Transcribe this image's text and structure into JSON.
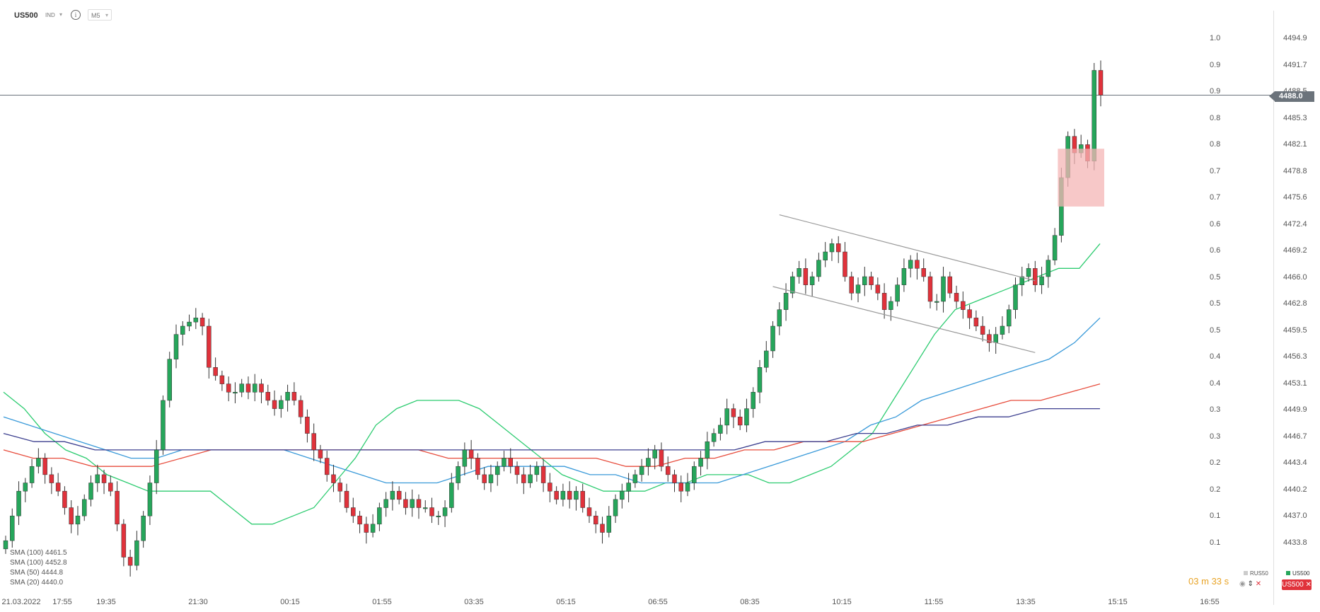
{
  "header": {
    "symbol": "US500",
    "indicator_label": "IND",
    "info_icon": "info-icon",
    "timeframe": "M5"
  },
  "price_axis": {
    "labels": [
      "4494.9",
      "4491.7",
      "4488.5",
      "4485.3",
      "4482.1",
      "4478.8",
      "4475.6",
      "4472.4",
      "4469.2",
      "4466.0",
      "4462.8",
      "4459.5",
      "4456.3",
      "4453.1",
      "4449.9",
      "4446.7",
      "4443.4",
      "4440.2",
      "4437.0",
      "4433.8"
    ],
    "current_price": "4488.0"
  },
  "ratio_axis": {
    "labels": [
      "1.0",
      "0.9",
      "0.9",
      "0.8",
      "0.8",
      "0.7",
      "0.7",
      "0.6",
      "0.6",
      "0.5",
      "0.5",
      "0.5",
      "0.4",
      "0.4",
      "0.3",
      "0.3",
      "0.2",
      "0.2",
      "0.1",
      "0.1"
    ]
  },
  "time_axis": {
    "labels": [
      "21.03.2022",
      "17:55",
      "19:35",
      "21:30",
      "00:15",
      "01:55",
      "03:35",
      "05:15",
      "06:55",
      "08:35",
      "10:15",
      "11:55",
      "13:35",
      "15:15",
      "16:55"
    ]
  },
  "legend": {
    "items": [
      "SMA (100)",
      "SMA (100)",
      "SMA (50)",
      "SMA (20)"
    ],
    "values": [
      "4461.5",
      "4452.8",
      "4444.8",
      "4440.0"
    ]
  },
  "countdown": {
    "minutes": "03",
    "m_label": "m",
    "seconds": "33",
    "s_label": "s"
  },
  "compare": {
    "rus50_label": "RUS50",
    "us500_label": "US500",
    "us500_button": "US500 ✕"
  },
  "colors": {
    "up": "#26a65b",
    "down": "#e0323b",
    "sma_green": "#2ecc71",
    "sma_blue": "#3a9ad9",
    "sma_red": "#e74c3c",
    "sma_navy": "#3c3f8f",
    "channel": "#999999",
    "highlight": "#f4b6b6"
  },
  "chart_data": {
    "type": "candlestick",
    "title": "",
    "symbol": "US500",
    "timeframe": "M5",
    "xlabel": "",
    "ylabel": "",
    "ylim": [
      4432.0,
      4496.5
    ],
    "x_ticks": [
      "21.03.2022",
      "17:55",
      "19:35",
      "21:30",
      "00:15",
      "01:55",
      "03:35",
      "05:15",
      "06:55",
      "08:35",
      "10:15",
      "11:55",
      "13:35",
      "15:15",
      "16:55"
    ],
    "last_price": 4488.0,
    "candles_close": [
      4434,
      4437,
      4440,
      4441,
      4443,
      4444,
      4442,
      4441,
      4440,
      4438,
      4436,
      4437,
      4439,
      4441,
      4442,
      4441,
      4440,
      4436,
      4432,
      4431,
      4434,
      4437,
      4441,
      4445,
      4451,
      4456,
      4459,
      4460,
      4460.5,
      4461,
      4460,
      4455,
      4454,
      4453,
      4452,
      4452,
      4453,
      4452,
      4453,
      4452,
      4451,
      4450,
      4451,
      4452,
      4451,
      4449,
      4447,
      4445,
      4444,
      4442,
      4441,
      4440,
      4438,
      4437,
      4436,
      4435,
      4436,
      4438,
      4439,
      4440,
      4439,
      4438,
      4439,
      4438,
      4438,
      4437,
      4437,
      4438,
      4441,
      4443,
      4445,
      4444,
      4442,
      4441,
      4442,
      4443,
      4444,
      4443,
      4442,
      4441,
      4442,
      4443,
      4441,
      4440,
      4439,
      4440,
      4439,
      4440,
      4438,
      4437,
      4436,
      4435,
      4437,
      4439,
      4440,
      4441,
      4442,
      4443,
      4444,
      4445,
      4443,
      4442,
      4441,
      4440,
      4441,
      4443,
      4444,
      4446,
      4447,
      4448,
      4450,
      4449,
      4448,
      4450,
      4452,
      4455,
      4457,
      4460,
      4462,
      4464,
      4466,
      4467,
      4465,
      4466,
      4468,
      4469,
      4470,
      4469,
      4466,
      4464,
      4465,
      4466,
      4465,
      4464,
      4462,
      4463,
      4465,
      4467,
      4468,
      4467,
      4466,
      4463,
      4463,
      4466,
      4464,
      4463,
      4462,
      4461,
      4460,
      4459,
      4458,
      4459,
      4460,
      4462,
      4465,
      4466,
      4467,
      4465,
      4466,
      4468,
      4471,
      4478,
      4483,
      4481,
      4482,
      4480,
      4491,
      4488
    ],
    "series": [
      {
        "name": "SMA (20)",
        "color": "#2ecc71",
        "values": [
          4452,
          4450,
          4447,
          4445,
          4444,
          4442,
          4441,
          4440,
          4440,
          4440,
          4440,
          4438,
          4436,
          4436,
          4437,
          4438,
          4441,
          4444,
          4448,
          4450,
          4451,
          4451,
          4451,
          4450,
          4448,
          4446,
          4444,
          4442,
          4441,
          4440,
          4440,
          4440,
          4441,
          4441,
          4442,
          4442,
          4442,
          4441,
          4441,
          4442,
          4443,
          4445,
          4447,
          4451,
          4455,
          4459,
          4462,
          4463,
          4464,
          4465,
          4466,
          4467,
          4467,
          4470
        ]
      },
      {
        "name": "SMA (50)",
        "color": "#3a9ad9",
        "values": [
          4449,
          4448,
          4447,
          4446,
          4445,
          4444,
          4444,
          4445,
          4445,
          4445,
          4445,
          4445,
          4444,
          4443,
          4442,
          4441,
          4441,
          4441,
          4442,
          4443,
          4443,
          4443,
          4443,
          4442,
          4442,
          4441,
          4441,
          4441,
          4441,
          4442,
          4443,
          4444,
          4445,
          4446,
          4448,
          4449,
          4451,
          4452,
          4453,
          4454,
          4455,
          4456,
          4458,
          4461
        ]
      },
      {
        "name": "SMA (100)",
        "color": "#e74c3c",
        "values": [
          4445,
          4444,
          4444,
          4443,
          4443,
          4443,
          4444,
          4445,
          4445,
          4445,
          4445,
          4445,
          4445,
          4445,
          4445,
          4444,
          4444,
          4444,
          4444,
          4444,
          4444,
          4443,
          4443,
          4444,
          4444,
          4445,
          4445,
          4446,
          4446,
          4446,
          4447,
          4448,
          4449,
          4450,
          4451,
          4451,
          4452,
          4453
        ]
      },
      {
        "name": "SMA (100)",
        "color": "#3c3f8f",
        "values": [
          4447,
          4446,
          4446,
          4445,
          4445,
          4445,
          4445,
          4445,
          4445,
          4445,
          4445,
          4445,
          4445,
          4445,
          4445,
          4445,
          4445,
          4445,
          4445,
          4445,
          4445,
          4445,
          4445,
          4445,
          4445,
          4446,
          4446,
          4446,
          4447,
          4447,
          4448,
          4448,
          4449,
          4449,
          4450,
          4450,
          4450
        ]
      }
    ]
  }
}
